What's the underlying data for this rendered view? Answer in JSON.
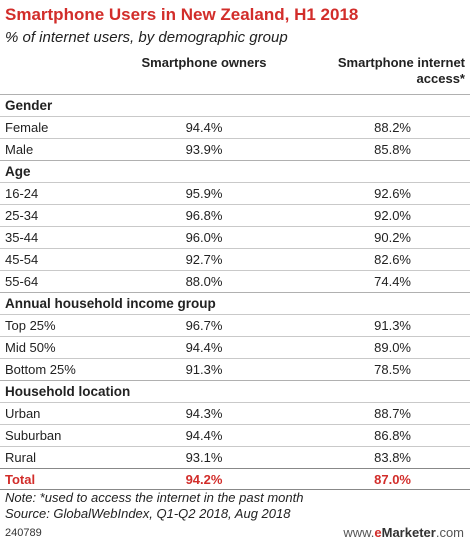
{
  "header": {
    "title": "Smartphone Users in New Zealand, H1 2018",
    "subtitle": "% of internet users, by demographic group",
    "col1": "Smartphone owners",
    "col2_line1": "Smartphone internet",
    "col2_line2": "access*"
  },
  "chart_data": {
    "type": "table",
    "columns": [
      "Smartphone owners",
      "Smartphone internet access*"
    ],
    "groups": [
      {
        "name": "Gender",
        "rows": [
          {
            "label": "Female",
            "values": [
              "94.4%",
              "88.2%"
            ]
          },
          {
            "label": "Male",
            "values": [
              "93.9%",
              "85.8%"
            ]
          }
        ]
      },
      {
        "name": "Age",
        "rows": [
          {
            "label": "16-24",
            "values": [
              "95.9%",
              "92.6%"
            ]
          },
          {
            "label": "25-34",
            "values": [
              "96.8%",
              "92.0%"
            ]
          },
          {
            "label": "35-44",
            "values": [
              "96.0%",
              "90.2%"
            ]
          },
          {
            "label": "45-54",
            "values": [
              "92.7%",
              "82.6%"
            ]
          },
          {
            "label": "55-64",
            "values": [
              "88.0%",
              "74.4%"
            ]
          }
        ]
      },
      {
        "name": "Annual household income group",
        "rows": [
          {
            "label": "Top 25%",
            "values": [
              "96.7%",
              "91.3%"
            ]
          },
          {
            "label": "Mid 50%",
            "values": [
              "94.4%",
              "89.0%"
            ]
          },
          {
            "label": "Bottom 25%",
            "values": [
              "91.3%",
              "78.5%"
            ]
          }
        ]
      },
      {
        "name": "Household location",
        "rows": [
          {
            "label": "Urban",
            "values": [
              "94.3%",
              "88.7%"
            ]
          },
          {
            "label": "Suburban",
            "values": [
              "94.4%",
              "86.8%"
            ]
          },
          {
            "label": "Rural",
            "values": [
              "93.1%",
              "83.8%"
            ]
          }
        ]
      }
    ],
    "total": {
      "label": "Total",
      "values": [
        "94.2%",
        "87.0%"
      ]
    }
  },
  "footer": {
    "note": "Note: *used to access the internet in the past month",
    "source": "Source: GlobalWebIndex, Q1-Q2 2018, Aug 2018",
    "chart_id": "240789",
    "brand_prefix": "www.",
    "brand_e": "e",
    "brand_name": "Marketer",
    "brand_suffix": ".com"
  },
  "colors": {
    "accent": "#d22d2a"
  }
}
